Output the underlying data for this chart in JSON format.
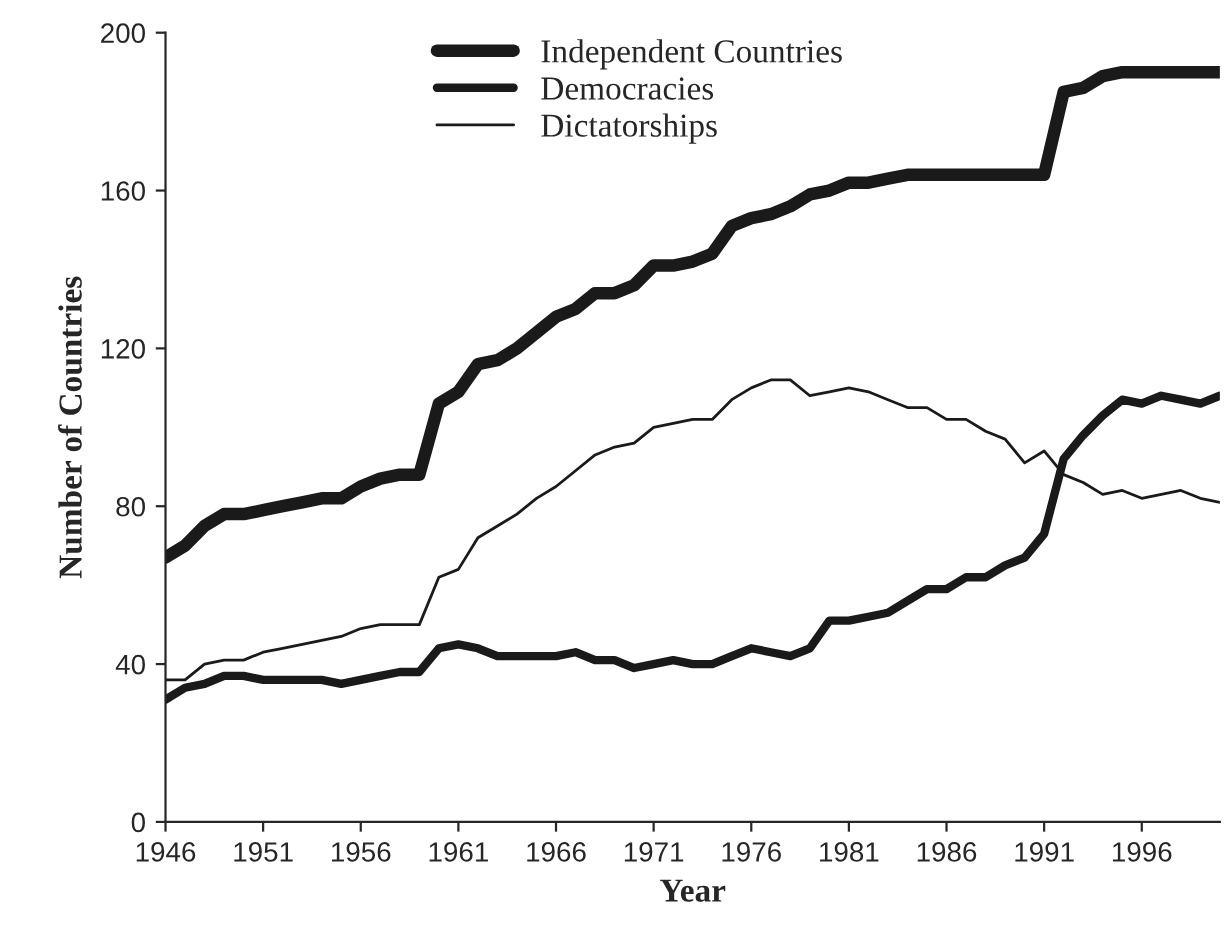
{
  "chart_data": {
    "type": "line",
    "xlabel": "Year",
    "ylabel": "Number of Countries",
    "x": [
      1946,
      1947,
      1948,
      1949,
      1950,
      1951,
      1952,
      1953,
      1954,
      1955,
      1956,
      1957,
      1958,
      1959,
      1960,
      1961,
      1962,
      1963,
      1964,
      1965,
      1966,
      1967,
      1968,
      1969,
      1970,
      1971,
      1972,
      1973,
      1974,
      1975,
      1976,
      1977,
      1978,
      1979,
      1980,
      1981,
      1982,
      1983,
      1984,
      1985,
      1986,
      1987,
      1988,
      1989,
      1990,
      1991,
      1992,
      1993,
      1994,
      1995,
      1996,
      1997,
      1998,
      1999,
      2000
    ],
    "series": [
      {
        "name": "Independent Countries",
        "color": "#1a1a1a",
        "values": [
          67,
          70,
          75,
          78,
          78,
          79,
          80,
          81,
          82,
          82,
          85,
          87,
          88,
          88,
          106,
          109,
          116,
          117,
          120,
          124,
          128,
          130,
          134,
          134,
          136,
          141,
          141,
          142,
          144,
          151,
          153,
          154,
          156,
          159,
          160,
          162,
          162,
          163,
          164,
          164,
          164,
          164,
          164,
          164,
          164,
          164,
          185,
          186,
          189,
          190,
          190,
          190,
          190,
          190,
          190
        ]
      },
      {
        "name": "Democracies",
        "color": "#1a1a1a",
        "values": [
          31,
          34,
          35,
          37,
          37,
          36,
          36,
          36,
          36,
          35,
          36,
          37,
          38,
          38,
          44,
          45,
          44,
          42,
          42,
          42,
          42,
          43,
          41,
          41,
          39,
          40,
          41,
          40,
          40,
          42,
          44,
          43,
          42,
          44,
          51,
          51,
          52,
          53,
          56,
          59,
          59,
          62,
          62,
          65,
          67,
          73,
          92,
          98,
          103,
          107,
          106,
          108,
          107,
          106,
          108
        ]
      },
      {
        "name": "Dictatorships",
        "color": "#1a1a1a",
        "values": [
          36,
          36,
          40,
          41,
          41,
          43,
          44,
          45,
          46,
          47,
          49,
          50,
          50,
          50,
          62,
          64,
          72,
          75,
          78,
          82,
          85,
          89,
          93,
          95,
          96,
          100,
          101,
          102,
          102,
          107,
          110,
          112,
          112,
          108,
          109,
          110,
          109,
          107,
          105,
          105,
          102,
          102,
          99,
          97,
          91,
          94,
          88,
          86,
          83,
          84,
          82,
          83,
          84,
          82,
          81
        ]
      }
    ],
    "xlim": [
      1946,
      2000
    ],
    "xticks": [
      1946,
      1951,
      1956,
      1961,
      1966,
      1971,
      1976,
      1981,
      1986,
      1991,
      1996
    ],
    "ylim": [
      0,
      200
    ],
    "yticks": [
      0,
      40,
      80,
      120,
      160,
      200
    ],
    "grid": false,
    "legend": "top",
    "marker": "none",
    "line_style": "solid"
  }
}
